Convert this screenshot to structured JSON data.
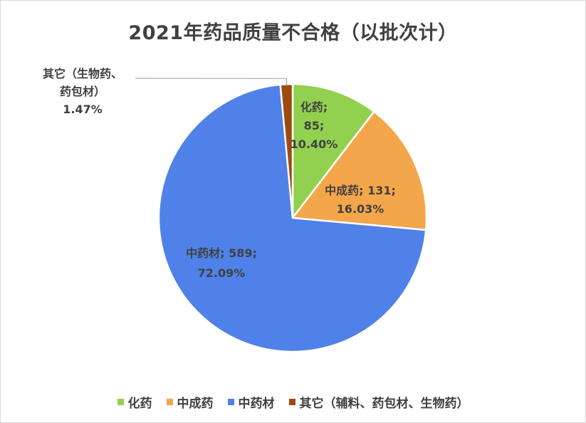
{
  "chart_data": {
    "type": "pie",
    "title": "2021年药品质量不合格（以批次计）",
    "slices": [
      {
        "name": "化药",
        "value": 85,
        "percent": "10.40%",
        "color": "#92d050",
        "label_lines": [
          "化药;",
          "85;",
          "10.40%"
        ]
      },
      {
        "name": "中成药",
        "value": 131,
        "percent": "16.03%",
        "color": "#f4a64a",
        "label_lines": [
          "中成药; 131;",
          "16.03%"
        ]
      },
      {
        "name": "中药材",
        "value": 589,
        "percent": "72.09%",
        "color": "#4f81e8",
        "label_lines": [
          "中药材; 589;",
          "72.09%"
        ]
      },
      {
        "name": "其它（辅料、药包材、生物药）",
        "value": 12,
        "percent": "1.47%",
        "color": "#9c4b0f",
        "label_lines": [
          "其它（生物药、",
          "药包材）",
          "1.47%"
        ]
      }
    ],
    "legend": [
      "化药",
      "中成药",
      "中药材",
      "其它（辅料、药包材、生物药）"
    ],
    "legend_position": "bottom"
  }
}
